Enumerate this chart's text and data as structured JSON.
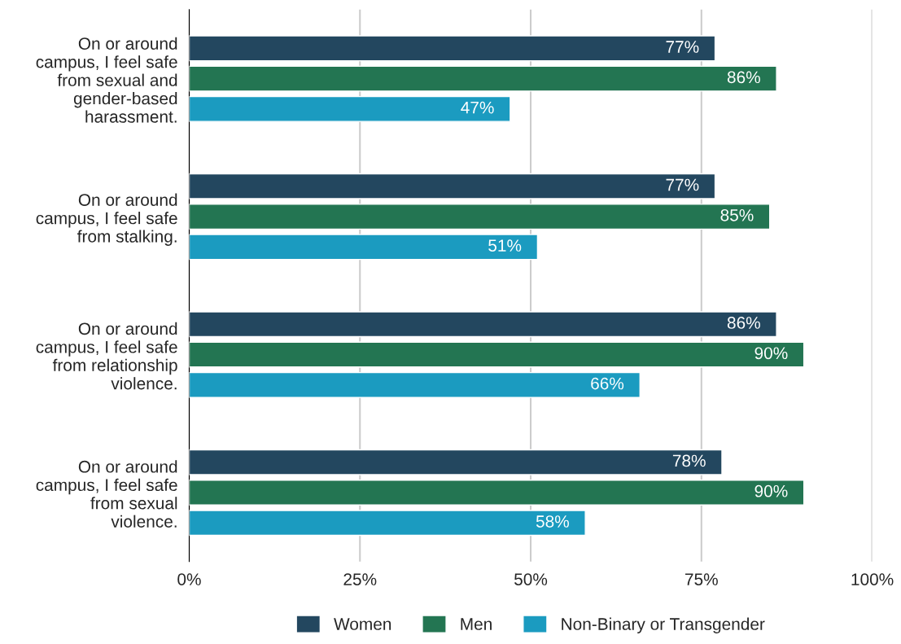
{
  "chart_data": {
    "type": "bar",
    "orientation": "horizontal",
    "categories": [
      "On or around\ncampus, I feel safe\nfrom sexual and\ngender-based\nharassment.",
      "On or around\ncampus, I feel safe\nfrom stalking.",
      "On or around\ncampus, I feel safe\nfrom relationship\nviolence.",
      "On or around\ncampus, I feel safe\nfrom sexual\nviolence."
    ],
    "series": [
      {
        "name": "Women",
        "color": "#23475f",
        "values": [
          77,
          77,
          86,
          78
        ],
        "value_labels": [
          "77%",
          "77%",
          "86%",
          "78%"
        ]
      },
      {
        "name": "Men",
        "color": "#237552",
        "values": [
          86,
          85,
          90,
          90
        ],
        "value_labels": [
          "86%",
          "85%",
          "90%",
          "90%"
        ]
      },
      {
        "name": "Non-Binary or Transgender",
        "color": "#1b9bc0",
        "values": [
          47,
          51,
          66,
          58
        ],
        "value_labels": [
          "47%",
          "51%",
          "66%",
          "58%"
        ]
      }
    ],
    "xlim": [
      0,
      100
    ],
    "xticks": [
      {
        "value": 0,
        "label": "0%"
      },
      {
        "value": 25,
        "label": "25%"
      },
      {
        "value": 50,
        "label": "50%"
      },
      {
        "value": 75,
        "label": "75%"
      },
      {
        "value": 100,
        "label": "100%"
      }
    ],
    "grid": "x",
    "legend": "bottom"
  }
}
